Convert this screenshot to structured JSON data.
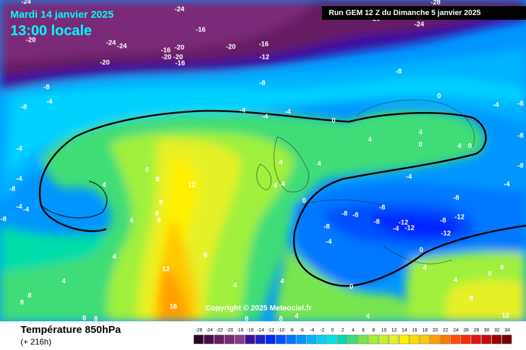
{
  "header": {
    "date": "Mardi 14 janvier 2025",
    "time": "13:00 locale",
    "run": "Run GEM 12 Z du Dimanche 5 janvier 2025"
  },
  "map": {
    "contour_labels": [
      -24,
      -24,
      -24,
      -28,
      -20,
      -20,
      -24,
      -24,
      -16,
      -16,
      -20,
      -20,
      -20,
      -16,
      -20,
      -16,
      -12,
      -20,
      -8,
      -8,
      -8,
      -4,
      -8,
      -4,
      -4,
      -4,
      0,
      0,
      -4,
      -8,
      -4,
      4,
      4,
      0,
      4,
      0,
      -8,
      -8,
      4,
      4,
      8,
      8,
      12,
      -4,
      -4,
      4,
      4,
      4,
      -4,
      -8,
      0,
      -8,
      -4,
      -4,
      -8,
      8,
      8,
      8,
      4,
      -8,
      -8,
      -8,
      -8,
      -8,
      -12,
      -4,
      -12,
      -8,
      -12,
      -12,
      0,
      -4,
      4,
      8,
      12,
      4,
      4,
      4,
      0,
      16,
      8,
      8,
      8,
      8,
      8,
      4,
      8,
      4,
      12,
      8,
      4,
      4,
      8,
      8
    ],
    "copyright": "Copyright © 2025 Meteociel.fr"
  },
  "footer": {
    "title": "Température 850hPa",
    "lead": "(+ 216h)"
  },
  "scale": {
    "values": [
      -26,
      -24,
      -22,
      -20,
      -18,
      -16,
      -14,
      -12,
      -10,
      -8,
      -6,
      -4,
      -2,
      0,
      2,
      4,
      6,
      8,
      10,
      12,
      14,
      16,
      18,
      20,
      22,
      24,
      26,
      28,
      30,
      32,
      34
    ],
    "colors": [
      "#2b0628",
      "#4a0e47",
      "#661d63",
      "#7a2a78",
      "#8c3a8c",
      "#3c0ea0",
      "#2020c8",
      "#0028ff",
      "#0050ff",
      "#0078ff",
      "#0096ff",
      "#00b4ff",
      "#00d2ff",
      "#00e6e6",
      "#00dcaa",
      "#40dc78",
      "#78e650",
      "#a0f03c",
      "#c8f032",
      "#e6f028",
      "#fff000",
      "#ffdc00",
      "#ffc800",
      "#ffa000",
      "#ff7800",
      "#ff5000",
      "#ff2800",
      "#e61414",
      "#c80a0a",
      "#a00000",
      "#780000"
    ]
  }
}
